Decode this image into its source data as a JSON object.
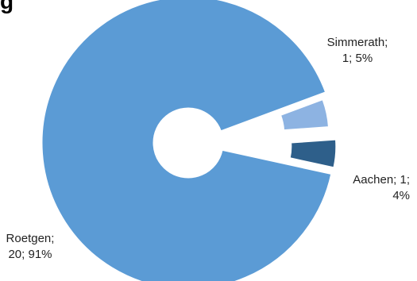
{
  "title_fragment": "g",
  "chart_data": {
    "type": "pie",
    "style": "exploded-doughnut",
    "categories": [
      "Roetgen",
      "Simmerath",
      "Aachen"
    ],
    "values": [
      20,
      1,
      1
    ],
    "percentages": [
      "91%",
      "5%",
      "4%"
    ],
    "labels": [
      {
        "line1": "Roetgen;",
        "line2": "20; 91%"
      },
      {
        "line1": "Simmerath;",
        "line2": "1; 5%"
      },
      {
        "line1": "Aachen; 1;",
        "line2": "4%"
      }
    ],
    "colors": [
      "#5b9bd5",
      "#8db3e2",
      "#2e5f8a"
    ],
    "legend": "none"
  }
}
